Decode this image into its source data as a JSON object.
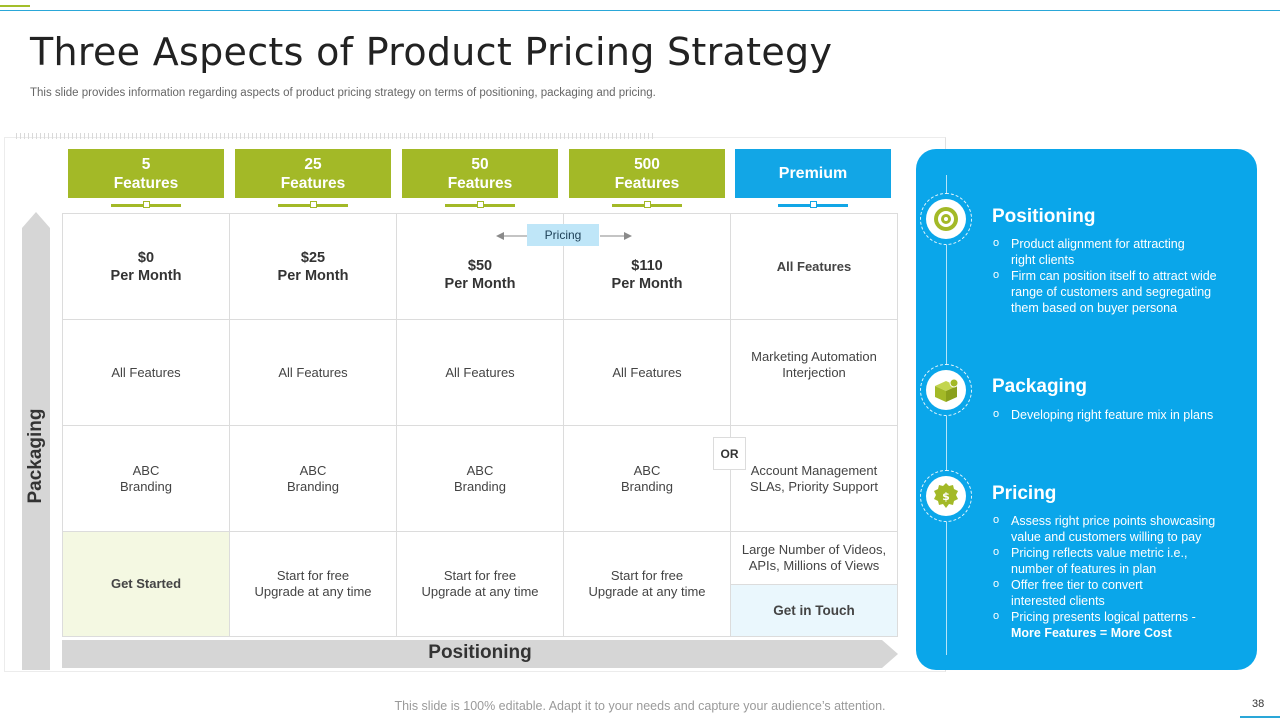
{
  "slide": {
    "title": "Three Aspects of Product Pricing Strategy",
    "subtitle": "This slide provides information regarding aspects of product pricing strategy on terms of positioning, packaging and pricing.",
    "footer": "This slide is 100% editable. Adapt it to your needs and capture your audience’s attention.",
    "page_number": "38"
  },
  "axes": {
    "vertical": "Packaging",
    "horizontal": "Positioning",
    "pricing_tag": "Pricing",
    "or_label": "OR"
  },
  "columns": [
    {
      "line1": "5",
      "line2": "Features"
    },
    {
      "line1": "25",
      "line2": "Features"
    },
    {
      "line1": "50",
      "line2": "Features"
    },
    {
      "line1": "500",
      "line2": "Features"
    },
    {
      "line1": "Premium",
      "line2": ""
    }
  ],
  "rows": {
    "prices": [
      {
        "amount": "$0",
        "period": "Per Month"
      },
      {
        "amount": "$25",
        "period": "Per Month"
      },
      {
        "amount": "$50",
        "period": "Per Month"
      },
      {
        "amount": "$110",
        "period": "Per Month"
      },
      {
        "amount": "All Features",
        "period": ""
      }
    ],
    "features": [
      {
        "l1": "All Features",
        "l2": ""
      },
      {
        "l1": "All Features",
        "l2": ""
      },
      {
        "l1": "All Features",
        "l2": ""
      },
      {
        "l1": "All Features",
        "l2": ""
      },
      {
        "l1": "Marketing Automation",
        "l2": "Interjection"
      }
    ],
    "branding": [
      {
        "l1": "ABC",
        "l2": "Branding"
      },
      {
        "l1": "ABC",
        "l2": "Branding"
      },
      {
        "l1": "ABC",
        "l2": "Branding"
      },
      {
        "l1": "ABC",
        "l2": "Branding"
      },
      {
        "l1": "Account Management",
        "l2": "SLAs, Priority Support"
      }
    ],
    "actions": [
      {
        "l1": "Get Started",
        "l2": ""
      },
      {
        "l1": "Start for free",
        "l2": "Upgrade at any time"
      },
      {
        "l1": "Start for free",
        "l2": "Upgrade at any time"
      },
      {
        "l1": "Start for free",
        "l2": "Upgrade at any time"
      }
    ],
    "premium_extra": {
      "l1": "Large Number of Videos,",
      "l2": "APIs, Millions of Views"
    },
    "premium_button": "Get in Touch"
  },
  "sections": [
    {
      "title": "Positioning",
      "icon": "target-icon",
      "bullets": [
        [
          "Product alignment for attracting",
          "right clients"
        ],
        [
          "Firm can position itself to attract wide",
          "range of customers and segregating",
          "them based on buyer persona"
        ]
      ]
    },
    {
      "title": "Packaging",
      "icon": "box-icon",
      "bullets": [
        [
          "Developing  right feature mix in plans"
        ]
      ]
    },
    {
      "title": "Pricing",
      "icon": "dollar-badge-icon",
      "bullets": [
        [
          "Assess right price points showcasing",
          "value  and customers willing to pay"
        ],
        [
          "Pricing reflects value  metric i.e.,",
          "number of features  in plan"
        ],
        [
          "Offer free tier to convert",
          "interested clients"
        ],
        [
          "Pricing presents logical patterns -"
        ]
      ],
      "emphasis": "More Features = More Cost"
    }
  ],
  "colors": {
    "green": "#a3b927",
    "blue": "#12a6e6",
    "panel_blue": "#0aa6ea",
    "arrow_gray": "#d6d6d6"
  }
}
